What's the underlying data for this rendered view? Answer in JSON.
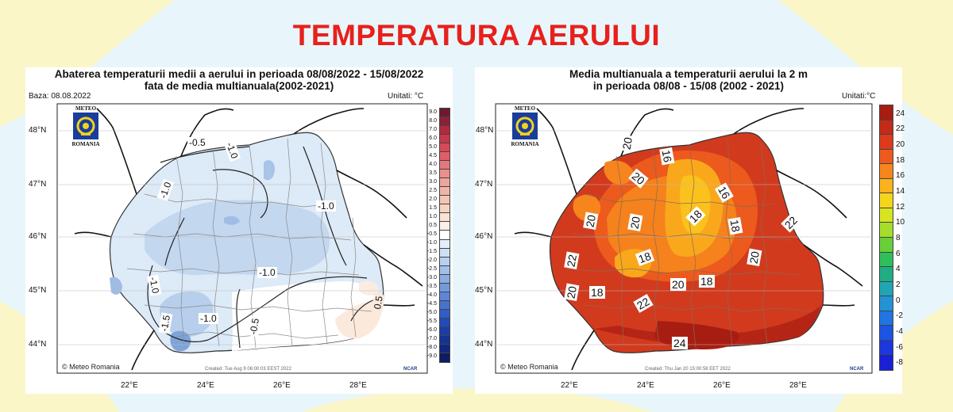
{
  "page_title": "TEMPERATURA AERULUI",
  "left": {
    "title_line1": "Abaterea temperaturii medii a aerului in perioada 08/08/2022 - 15/08/2022",
    "title_line2": "fata de media multianuala(2002-2021)",
    "base": "Baza: 08.08.2022",
    "units": "Unitati: °C",
    "credit": "© Meteo Romania",
    "created": "Created: Tue Aug  9 06:00:03 EEST 2022",
    "ncar": "NCAR",
    "lat_labels": [
      "48°N",
      "47°N",
      "46°N",
      "45°N",
      "44°N"
    ],
    "lon_labels": [
      "22°E",
      "24°E",
      "26°E",
      "28°E"
    ],
    "colorbar": [
      "9.0",
      "8.0",
      "7.0",
      "6.0",
      "5.0",
      "4.5",
      "4.0",
      "3.5",
      "3.0",
      "2.5",
      "2.0",
      "1.5",
      "1.0",
      "0.5",
      "-0.5",
      "-1.0",
      "-1.5",
      "-2.0",
      "-2.5",
      "-3.0",
      "-3.5",
      "-4.0",
      "-4.5",
      "-5.0",
      "-5.5",
      "-6.0",
      "-7.0",
      "-8.0",
      "-9.0"
    ],
    "colorbar_colors": [
      "#6e1a2e",
      "#8e1f3a",
      "#b02a3e",
      "#c9374a",
      "#d9475a",
      "#e05e68",
      "#e4787e",
      "#e9918f",
      "#eca49d",
      "#efb5a9",
      "#f2c5b5",
      "#f5d4c2",
      "#f8e2d2",
      "#fbefe6",
      "#ffffff",
      "#e4eefa",
      "#cddff5",
      "#b7d0ef",
      "#a0c0e9",
      "#8aaee3",
      "#739bdc",
      "#5d87d5",
      "#4673cd",
      "#305fc4",
      "#1f4cba",
      "#1a3ea8",
      "#163394",
      "#12287d",
      "#0e1c63"
    ],
    "contour_labels": [
      "-0.5",
      "-1.0",
      "-1.0",
      "-1.0",
      "-1.0",
      "-1.0",
      "-1.0",
      "-1.5",
      "-0.5",
      "0.5"
    ]
  },
  "right": {
    "title_line1": "Media multianuala a temperaturii aerului la 2 m",
    "title_line2": "in perioada 08/08 - 15/08 (2002 - 2021)",
    "units": "Unitati:°C",
    "credit": "© Meteo Romania",
    "created": "Created: Thu Jan 20 15:00:58 EET 2022",
    "ncar": "NCAR",
    "lat_labels": [
      "48°N",
      "47°N",
      "46°N",
      "45°N",
      "44°N"
    ],
    "lon_labels": [
      "22°E",
      "24°E",
      "26°E",
      "28°E"
    ],
    "colorbar": [
      "24",
      "22",
      "20",
      "18",
      "16",
      "14",
      "12",
      "10",
      "8",
      "6",
      "4",
      "2",
      "0",
      "-2",
      "-4",
      "-6",
      "-8"
    ],
    "colorbar_colors": [
      "#a81d12",
      "#c42b16",
      "#dd3a1c",
      "#ee5a1d",
      "#f7851e",
      "#fab21d",
      "#f4d51c",
      "#d7e41f",
      "#a5dd2a",
      "#66cf3a",
      "#2fbf5a",
      "#1fae83",
      "#21a5b2",
      "#2393d6",
      "#2074e3",
      "#1c54e4",
      "#1a37e0",
      "#1a1fd8"
    ],
    "contour_labels": [
      "20",
      "16",
      "20",
      "16",
      "20",
      "20",
      "18",
      "18",
      "22",
      "22",
      "18",
      "20",
      "20",
      "18",
      "20",
      "18",
      "22",
      "24"
    ]
  }
}
